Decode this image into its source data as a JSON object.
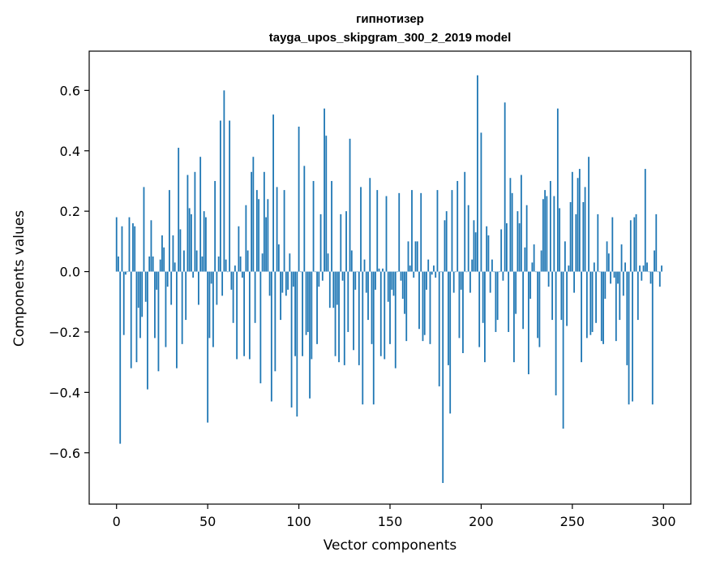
{
  "chart_data": {
    "type": "bar",
    "title": "гипнотизер",
    "subtitle": "tayga_upos_skipgram_300_2_2019 model",
    "xlabel": "Vector components",
    "ylabel": "Components values",
    "xlim": [
      -15,
      315
    ],
    "ylim": [
      -0.77,
      0.73
    ],
    "xticks": [
      0,
      50,
      100,
      150,
      200,
      250,
      300
    ],
    "xtick_labels": [
      "0",
      "50",
      "100",
      "150",
      "200",
      "250",
      "300"
    ],
    "yticks": [
      -0.6,
      -0.4,
      -0.2,
      0.0,
      0.2,
      0.4,
      0.6
    ],
    "ytick_labels": [
      "−0.6",
      "−0.4",
      "−0.2",
      "0.0",
      "0.2",
      "0.4",
      "0.6"
    ],
    "grid": false,
    "bar_color": "#1f77b4",
    "x": [
      0,
      1,
      2,
      3,
      4,
      5,
      6,
      7,
      8,
      9,
      10,
      11,
      12,
      13,
      14,
      15,
      16,
      17,
      18,
      19,
      20,
      21,
      22,
      23,
      24,
      25,
      26,
      27,
      28,
      29,
      30,
      31,
      32,
      33,
      34,
      35,
      36,
      37,
      38,
      39,
      40,
      41,
      42,
      43,
      44,
      45,
      46,
      47,
      48,
      49,
      50,
      51,
      52,
      53,
      54,
      55,
      56,
      57,
      58,
      59,
      60,
      61,
      62,
      63,
      64,
      65,
      66,
      67,
      68,
      69,
      70,
      71,
      72,
      73,
      74,
      75,
      76,
      77,
      78,
      79,
      80,
      81,
      82,
      83,
      84,
      85,
      86,
      87,
      88,
      89,
      90,
      91,
      92,
      93,
      94,
      95,
      96,
      97,
      98,
      99,
      100,
      101,
      102,
      103,
      104,
      105,
      106,
      107,
      108,
      109,
      110,
      111,
      112,
      113,
      114,
      115,
      116,
      117,
      118,
      119,
      120,
      121,
      122,
      123,
      124,
      125,
      126,
      127,
      128,
      129,
      130,
      131,
      132,
      133,
      134,
      135,
      136,
      137,
      138,
      139,
      140,
      141,
      142,
      143,
      144,
      145,
      146,
      147,
      148,
      149,
      150,
      151,
      152,
      153,
      154,
      155,
      156,
      157,
      158,
      159,
      160,
      161,
      162,
      163,
      164,
      165,
      166,
      167,
      168,
      169,
      170,
      171,
      172,
      173,
      174,
      175,
      176,
      177,
      178,
      179,
      180,
      181,
      182,
      183,
      184,
      185,
      186,
      187,
      188,
      189,
      190,
      191,
      192,
      193,
      194,
      195,
      196,
      197,
      198,
      199,
      200,
      201,
      202,
      203,
      204,
      205,
      206,
      207,
      208,
      209,
      210,
      211,
      212,
      213,
      214,
      215,
      216,
      217,
      218,
      219,
      220,
      221,
      222,
      223,
      224,
      225,
      226,
      227,
      228,
      229,
      230,
      231,
      232,
      233,
      234,
      235,
      236,
      237,
      238,
      239,
      240,
      241,
      242,
      243,
      244,
      245,
      246,
      247,
      248,
      249,
      250,
      251,
      252,
      253,
      254,
      255,
      256,
      257,
      258,
      259,
      260,
      261,
      262,
      263,
      264,
      265,
      266,
      267,
      268,
      269,
      270,
      271,
      272,
      273,
      274,
      275,
      276,
      277,
      278,
      279,
      280,
      281,
      282,
      283,
      284,
      285,
      286,
      287,
      288,
      289,
      290,
      291,
      292,
      293,
      294,
      295,
      296,
      297,
      298,
      299
    ],
    "values": [
      0.18,
      0.05,
      -0.57,
      0.15,
      -0.21,
      -0.01,
      0.0,
      0.18,
      -0.32,
      0.16,
      0.15,
      -0.3,
      -0.12,
      -0.22,
      -0.15,
      0.28,
      -0.1,
      -0.39,
      0.05,
      0.17,
      0.05,
      -0.22,
      -0.06,
      -0.33,
      0.04,
      0.12,
      0.08,
      -0.25,
      -0.05,
      0.27,
      -0.11,
      0.12,
      0.03,
      -0.32,
      0.41,
      0.14,
      -0.24,
      0.07,
      -0.16,
      0.32,
      0.21,
      0.19,
      -0.02,
      0.33,
      0.07,
      -0.11,
      0.38,
      0.05,
      0.2,
      0.18,
      -0.5,
      -0.22,
      -0.04,
      -0.25,
      0.3,
      -0.11,
      0.05,
      0.5,
      -0.08,
      0.6,
      0.04,
      0.0,
      0.5,
      -0.06,
      -0.17,
      0.02,
      -0.29,
      0.15,
      0.05,
      -0.02,
      -0.28,
      0.22,
      0.07,
      -0.29,
      0.33,
      0.38,
      -0.17,
      0.27,
      0.24,
      -0.37,
      0.06,
      0.33,
      0.18,
      0.24,
      -0.08,
      -0.43,
      0.52,
      -0.33,
      0.28,
      0.09,
      -0.16,
      -0.07,
      0.27,
      -0.08,
      -0.06,
      0.06,
      -0.45,
      -0.05,
      -0.28,
      -0.48,
      0.48,
      0.0,
      -0.28,
      0.35,
      -0.21,
      -0.2,
      -0.42,
      -0.29,
      0.3,
      0.0,
      -0.24,
      -0.05,
      0.19,
      -0.03,
      0.54,
      0.45,
      0.06,
      -0.12,
      0.3,
      -0.12,
      -0.28,
      -0.11,
      -0.3,
      0.19,
      -0.03,
      -0.31,
      0.2,
      -0.2,
      0.44,
      0.07,
      -0.26,
      -0.06,
      0.0,
      -0.31,
      0.28,
      -0.44,
      0.04,
      -0.07,
      -0.16,
      0.31,
      -0.24,
      -0.44,
      -0.06,
      0.27,
      0.01,
      -0.28,
      0.01,
      -0.29,
      0.25,
      -0.1,
      -0.24,
      -0.06,
      -0.08,
      -0.32,
      0.0,
      0.26,
      -0.03,
      -0.09,
      -0.14,
      -0.23,
      0.1,
      0.02,
      0.27,
      -0.02,
      0.1,
      0.1,
      -0.19,
      0.26,
      -0.23,
      -0.21,
      -0.06,
      0.04,
      -0.24,
      -0.01,
      0.02,
      -0.02,
      0.27,
      -0.38,
      0.0,
      -0.7,
      0.17,
      0.2,
      -0.31,
      -0.47,
      0.27,
      -0.07,
      0.0,
      0.3,
      -0.22,
      -0.06,
      -0.27,
      0.33,
      0.0,
      0.22,
      -0.07,
      0.04,
      0.17,
      0.13,
      0.65,
      -0.25,
      0.46,
      -0.17,
      -0.3,
      0.15,
      0.12,
      -0.07,
      0.04,
      0.0,
      -0.2,
      -0.16,
      0.0,
      0.14,
      -0.03,
      0.56,
      0.16,
      -0.2,
      0.31,
      0.26,
      -0.3,
      -0.14,
      0.2,
      0.16,
      0.32,
      -0.19,
      0.08,
      0.22,
      -0.34,
      -0.09,
      0.03,
      0.09,
      0.0,
      -0.22,
      -0.25,
      0.07,
      0.24,
      0.27,
      0.25,
      -0.05,
      0.3,
      -0.16,
      0.25,
      -0.41,
      0.54,
      0.21,
      -0.16,
      -0.52,
      0.1,
      -0.18,
      0.02,
      0.23,
      0.33,
      -0.07,
      0.19,
      0.31,
      0.34,
      -0.3,
      0.23,
      0.28,
      -0.22,
      0.38,
      -0.21,
      -0.2,
      0.03,
      -0.17,
      0.19,
      0.0,
      -0.23,
      -0.24,
      -0.09,
      0.1,
      0.06,
      -0.04,
      0.18,
      -0.02,
      -0.23,
      -0.04,
      -0.16,
      0.09,
      -0.08,
      0.03,
      -0.31,
      -0.44,
      0.17,
      -0.43,
      0.18,
      0.19,
      -0.16,
      0.02,
      -0.03,
      0.02,
      0.34,
      0.03,
      0.0,
      -0.04,
      -0.44,
      0.07,
      0.19,
      0.0,
      -0.05,
      0.02
    ]
  }
}
